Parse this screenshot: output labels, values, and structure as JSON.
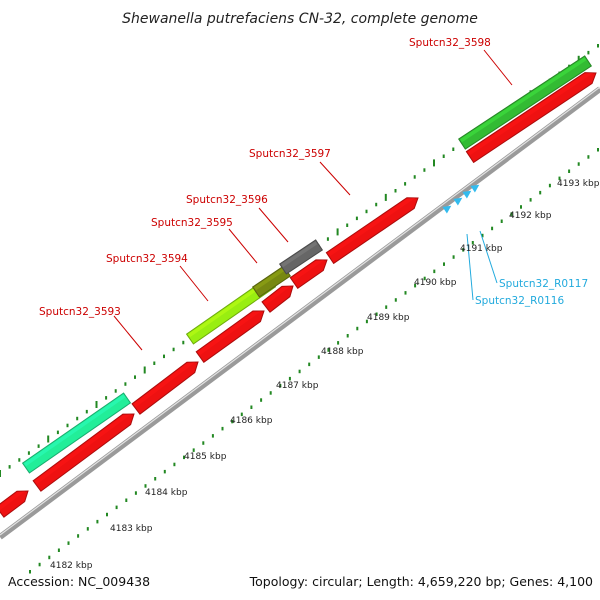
{
  "map": {
    "title": "Shewanella putrefaciens CN-32, complete genome",
    "accession_text": "Accession: NC_009438",
    "summary_text": "Topology: circular; Length: 4,659,220 bp; Genes: 4,100"
  },
  "colors": {
    "backbone": "#9a9a9a",
    "backbone_highlight": "#e2e2e2",
    "gene_red": "#ee1111",
    "gene_green": "#33bb33",
    "gene_teal": "#22ee99",
    "gene_lime": "#99ee11",
    "gene_olive": "#778811",
    "gene_gray": "#666666",
    "rna_cyan": "#33bbee",
    "label_red": "#cc0000",
    "label_cyan": "#22aadd",
    "tick_green": "#228822"
  },
  "scale_ticks": [
    {
      "label": "4182 kbp"
    },
    {
      "label": "4183 kbp"
    },
    {
      "label": "4184 kbp"
    },
    {
      "label": "4185 kbp"
    },
    {
      "label": "4186 kbp"
    },
    {
      "label": "4187 kbp"
    },
    {
      "label": "4188 kbp"
    },
    {
      "label": "4189 kbp"
    },
    {
      "label": "4190 kbp"
    },
    {
      "label": "4191 kbp"
    },
    {
      "label": "4192 kbp"
    },
    {
      "label": "4193 kbp"
    }
  ],
  "gene_labels": [
    {
      "text": "Sputcn32_3593",
      "color": "label_red"
    },
    {
      "text": "Sputcn32_3594",
      "color": "label_red"
    },
    {
      "text": "Sputcn32_3595",
      "color": "label_red"
    },
    {
      "text": "Sputcn32_3596",
      "color": "label_red"
    },
    {
      "text": "Sputcn32_3597",
      "color": "label_red"
    },
    {
      "text": "Sputcn32_3598",
      "color": "label_red"
    },
    {
      "text": "Sputcn32_R0117",
      "color": "label_cyan"
    },
    {
      "text": "Sputcn32_R0116",
      "color": "label_cyan"
    }
  ]
}
